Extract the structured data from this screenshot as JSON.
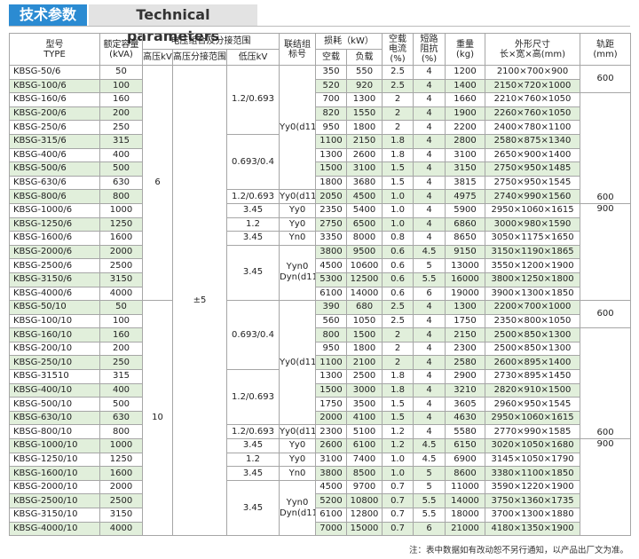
{
  "header": {
    "title": "技术参数",
    "subtitle": "Technical parameters"
  },
  "table": {
    "columns": [
      [
        "型号",
        "TYPE"
      ],
      [
        "额定容量",
        "(kVA)"
      ],
      "电压组合及分接范围",
      [
        "联结组",
        "标号"
      ],
      "损耗（kW）",
      [
        "空载",
        "电流",
        "(%)"
      ],
      [
        "短路",
        "阻抗",
        "(%)"
      ],
      [
        "重量",
        "(kg)"
      ],
      [
        "外形尺寸",
        "长×宽×高(mm)"
      ],
      [
        "轨距",
        "(mm)"
      ]
    ],
    "subcolumns": [
      "高压kV",
      "高压分接范围%",
      "低压kV",
      "空载",
      "负载"
    ],
    "rows": [
      [
        "KBSG-50/6",
        "50",
        "6",
        "±5",
        "1.2/0.693",
        "Yy0(d11)",
        "350",
        "550",
        "2.5",
        "4",
        "1200",
        "2100×700×900",
        "600"
      ],
      [
        "KBSG-100/6",
        "100",
        null,
        null,
        null,
        null,
        "520",
        "920",
        "2.5",
        "4",
        "1400",
        "2150×720×1000",
        null
      ],
      [
        "KBSG-160/6",
        "160",
        null,
        null,
        null,
        null,
        "700",
        "1300",
        "2",
        "4",
        "1660",
        "2210×760×1050",
        "600"
      ],
      [
        "KBSG-200/6",
        "200",
        null,
        null,
        null,
        null,
        "820",
        "1550",
        "2",
        "4",
        "1900",
        "2260×760×1050",
        null
      ],
      [
        "KBSG-250/6",
        "250",
        null,
        null,
        null,
        null,
        "950",
        "1800",
        "2",
        "4",
        "2200",
        "2400×780×1100",
        null
      ],
      [
        "KBSG-315/6",
        "315",
        null,
        null,
        "0.693/0.4",
        null,
        "1100",
        "2150",
        "1.8",
        "4",
        "2800",
        "2580×875×1340",
        null
      ],
      [
        "KBSG-400/6",
        "400",
        null,
        null,
        null,
        null,
        "1300",
        "2600",
        "1.8",
        "4",
        "3100",
        "2650×900×1400",
        null
      ],
      [
        "KBSG-500/6",
        "500",
        null,
        null,
        null,
        null,
        "1500",
        "3100",
        "1.5",
        "4",
        "3150",
        "2750×950×1485",
        null
      ],
      [
        "KBSG-630/6",
        "630",
        null,
        null,
        null,
        null,
        "1800",
        "3680",
        "1.5",
        "4",
        "3815",
        "2750×950×1545",
        null
      ],
      [
        "KBSG-800/6",
        "800",
        null,
        null,
        "1.2/0.693",
        "Yy0(d11)",
        "2050",
        "4500",
        "1.0",
        "4",
        "4975",
        "2740×990×1560",
        null
      ],
      [
        "KBSG-1000/6",
        "1000",
        null,
        null,
        "3.45",
        "Yy0",
        "2350",
        "5400",
        "1.0",
        "4",
        "5900",
        "2950×1060×1615",
        "900"
      ],
      [
        "KBSG-1250/6",
        "1250",
        null,
        null,
        "1.2",
        "Yy0",
        "2750",
        "6500",
        "1.0",
        "4",
        "6860",
        "3000×980×1590",
        null
      ],
      [
        "KBSG-1600/6",
        "1600",
        null,
        null,
        "3.45",
        "Yn0",
        "3350",
        "8000",
        "0.8",
        "4",
        "8650",
        "3050×1175×1650",
        null
      ],
      [
        "KBSG-2000/6",
        "2000",
        null,
        null,
        "3.45",
        [
          "Yyn0",
          "Dyn(d11)"
        ],
        "3800",
        "9500",
        "0.6",
        "4.5",
        "9150",
        "3150×1190×1865",
        null
      ],
      [
        "KBSG-2500/6",
        "2500",
        null,
        null,
        null,
        null,
        "4500",
        "10600",
        "0.6",
        "5",
        "13000",
        "3550×1200×1900",
        null
      ],
      [
        "KBSG-3150/6",
        "3150",
        null,
        null,
        null,
        null,
        "5300",
        "12500",
        "0.6",
        "5.5",
        "16000",
        "3800×1250×1800",
        null
      ],
      [
        "KBSG-4000/6",
        "4000",
        null,
        null,
        null,
        null,
        "6100",
        "14000",
        "0.6",
        "6",
        "19000",
        "3900×1300×1850",
        null
      ],
      [
        "KBSG-50/10",
        "50",
        "10",
        null,
        "0.693/0.4",
        "Yy0(d11)",
        "390",
        "680",
        "2.5",
        "4",
        "1300",
        "2200×700×1000",
        "600"
      ],
      [
        "KBSG-100/10",
        "100",
        null,
        null,
        null,
        null,
        "560",
        "1050",
        "2.5",
        "4",
        "1750",
        "2350×800×1050",
        null
      ],
      [
        "KBSG-160/10",
        "160",
        null,
        null,
        null,
        null,
        "800",
        "1500",
        "2",
        "4",
        "2150",
        "2500×850×1300",
        "600"
      ],
      [
        "KBSG-200/10",
        "200",
        null,
        null,
        null,
        null,
        "950",
        "1800",
        "2",
        "4",
        "2300",
        "2500×850×1300",
        null
      ],
      [
        "KBSG-250/10",
        "250",
        null,
        null,
        null,
        null,
        "1100",
        "2100",
        "2",
        "4",
        "2580",
        "2600×895×1400",
        null
      ],
      [
        "KBSG-31510",
        "315",
        null,
        null,
        "1.2/0.693",
        null,
        "1300",
        "2500",
        "1.8",
        "4",
        "2900",
        "2730×895×1450",
        null
      ],
      [
        "KBSG-400/10",
        "400",
        null,
        null,
        null,
        null,
        "1500",
        "3000",
        "1.8",
        "4",
        "3210",
        "2820×910×1500",
        null
      ],
      [
        "KBSG-500/10",
        "500",
        null,
        null,
        null,
        null,
        "1750",
        "3500",
        "1.5",
        "4",
        "3605",
        "2960×950×1545",
        null
      ],
      [
        "KBSG-630/10",
        "630",
        null,
        null,
        null,
        null,
        "2000",
        "4100",
        "1.5",
        "4",
        "4630",
        "2950×1060×1615",
        null
      ],
      [
        "KBSG-800/10",
        "800",
        null,
        null,
        "1.2/0.693",
        "Yy0(d11)",
        "2300",
        "5100",
        "1.2",
        "4",
        "5580",
        "2770×990×1585",
        null
      ],
      [
        "KBSG-1000/10",
        "1000",
        null,
        null,
        "3.45",
        "Yy0",
        "2600",
        "6100",
        "1.2",
        "4.5",
        "6150",
        "3020×1050×1680",
        "900"
      ],
      [
        "KBSG-1250/10",
        "1250",
        null,
        null,
        "1.2",
        "Yy0",
        "3100",
        "7400",
        "1.0",
        "4.5",
        "6900",
        "3145×1050×1790",
        null
      ],
      [
        "KBSG-1600/10",
        "1600",
        null,
        null,
        "3.45",
        "Yn0",
        "3800",
        "8500",
        "1.0",
        "5",
        "8600",
        "3380×1100×1850",
        null
      ],
      [
        "KBSG-2000/10",
        "2000",
        null,
        null,
        "3.45",
        [
          "Yyn0",
          "Dyn(d11)"
        ],
        "4500",
        "9700",
        "0.7",
        "5",
        "11000",
        "3590×1220×1900",
        null
      ],
      [
        "KBSG-2500/10",
        "2500",
        null,
        null,
        null,
        null,
        "5200",
        "10800",
        "0.7",
        "5.5",
        "14000",
        "3750×1360×1735",
        null
      ],
      [
        "KBSG-3150/10",
        "3150",
        null,
        null,
        null,
        null,
        "6100",
        "12800",
        "0.7",
        "5.5",
        "18000",
        "3700×1300×1880",
        null
      ],
      [
        "KBSG-4000/10",
        "4000",
        null,
        null,
        null,
        null,
        "7000",
        "15000",
        "0.7",
        "6",
        "21000",
        "4180×1350×1900",
        null
      ]
    ]
  },
  "note": "注：表中数据如有改动恕不另行通知，以产品出厂文为准。"
}
